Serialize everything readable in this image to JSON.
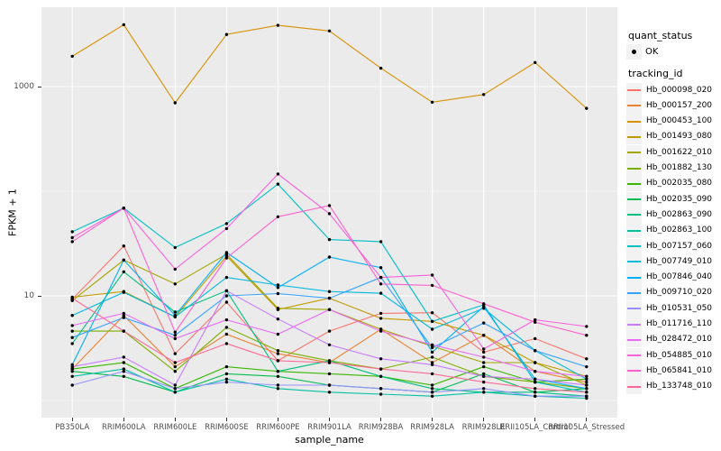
{
  "figure": {
    "background": "#FFFFFF",
    "panel_background": "#EBEBEB",
    "gridline_color": "#FFFFFF",
    "point_color": "#000000",
    "axis_text_color": "#4D4D4D"
  },
  "chart_data": {
    "type": "line",
    "title": "",
    "xlabel": "sample_name",
    "ylabel": "FPKM + 1",
    "y_scale": "log10",
    "ylim": [
      0.63,
      5750
    ],
    "grid": true,
    "y_major_ticks": [
      {
        "label": "1000",
        "value": 1000
      },
      {
        "label": "10",
        "value": 10
      }
    ],
    "y_minor_ticks": [
      100,
      1
    ],
    "legend_position": "right",
    "categories": [
      "PB350LA",
      "RRIM600LA",
      "RRIM600LE",
      "RRIM600SE",
      "RRIM600PE",
      "RRIM901LA",
      "RRIM928BA",
      "RRIM928LA",
      "RRIM928LE",
      "RRII105LA_Control",
      "RRII105LA_Stressed"
    ],
    "legend": {
      "quant_status_title": "quant_status",
      "quant_status_items": [
        {
          "label": "OK",
          "symbol": "point",
          "color": "#000000"
        }
      ],
      "tracking_title": "tracking_id"
    },
    "series": [
      {
        "name": "Hb_000098_020",
        "color": "#F8766D",
        "values": [
          9.3,
          30,
          2.8,
          8.7,
          2.4,
          4.6,
          6.8,
          6.9,
          2.9,
          3.9,
          2.5
        ]
      },
      {
        "name": "Hb_000157_200",
        "color": "#EA8331",
        "values": [
          2.0,
          6.5,
          2.1,
          4.3,
          2.8,
          2.3,
          4.8,
          2.3,
          4.2,
          1.9,
          1.5
        ]
      },
      {
        "name": "Hb_000453_100",
        "color": "#D89000",
        "values": [
          1950,
          3900,
          700,
          3150,
          3850,
          3400,
          1500,
          710,
          840,
          1700,
          620
        ]
      },
      {
        "name": "Hb_001493_080",
        "color": "#C09B00",
        "values": [
          9.7,
          11,
          6.3,
          24,
          7.4,
          9.5,
          6.1,
          5.7,
          4.2,
          2.3,
          1.7
        ]
      },
      {
        "name": "Hb_001622_010",
        "color": "#A3A500",
        "values": [
          9.0,
          22,
          13,
          25,
          7.6,
          7.4,
          4.8,
          3.3,
          2.3,
          2.3,
          1.4
        ]
      },
      {
        "name": "Hb_001882_130",
        "color": "#7CAE00",
        "values": [
          4.6,
          4.6,
          1.9,
          5.0,
          3.0,
          2.4,
          2.0,
          2.6,
          1.7,
          1.5,
          1.3
        ]
      },
      {
        "name": "Hb_002035_080",
        "color": "#39B600",
        "values": [
          2.0,
          2.3,
          1.3,
          2.1,
          1.9,
          1.8,
          1.7,
          1.4,
          2.1,
          1.5,
          1.6
        ]
      },
      {
        "name": "Hb_002035_090",
        "color": "#00BB4E",
        "values": [
          1.9,
          1.7,
          1.2,
          1.8,
          1.7,
          1.4,
          1.3,
          1.2,
          1.8,
          1.2,
          1.3
        ]
      },
      {
        "name": "Hb_002863_090",
        "color": "#00BF7D",
        "values": [
          3.5,
          17,
          7.0,
          11.2,
          1.9,
          2.4,
          1.7,
          1.3,
          1.2,
          1.2,
          1.1
        ]
      },
      {
        "name": "Hb_002863_100",
        "color": "#00C1A3",
        "values": [
          1.7,
          2.0,
          1.2,
          1.6,
          1.3,
          1.2,
          1.15,
          1.1,
          1.2,
          1.1,
          1.05
        ]
      },
      {
        "name": "Hb_007157_060",
        "color": "#00BFC4",
        "values": [
          41,
          69,
          29,
          49,
          117,
          34.5,
          33,
          5.7,
          8.2,
          1.5,
          1.2
        ]
      },
      {
        "name": "Hb_007749_010",
        "color": "#00BAE0",
        "values": [
          6.5,
          10.8,
          6.3,
          15,
          12.7,
          11,
          10.6,
          4.8,
          7.6,
          3.0,
          1.6
        ]
      },
      {
        "name": "Hb_007846_040",
        "color": "#00B0F6",
        "values": [
          2.2,
          22,
          6.5,
          26,
          12,
          23.5,
          18.6,
          2.9,
          7.9,
          1.6,
          1.3
        ]
      },
      {
        "name": "Hb_009710_020",
        "color": "#35A2FF",
        "values": [
          4.0,
          6.2,
          4.2,
          10,
          10.5,
          9.5,
          15,
          3.2,
          5.5,
          3.0,
          2.1
        ]
      },
      {
        "name": "Hb_010531_050",
        "color": "#9590FF",
        "values": [
          1.4,
          1.9,
          1.3,
          1.5,
          1.4,
          1.4,
          1.3,
          1.2,
          1.3,
          1.1,
          1.1
        ]
      },
      {
        "name": "Hb_011716_110",
        "color": "#C77CFF",
        "values": [
          2.1,
          2.6,
          1.4,
          11.2,
          6.0,
          3.4,
          2.5,
          2.2,
          1.7,
          1.6,
          1.4
        ]
      },
      {
        "name": "Hb_028472_010",
        "color": "#E76BF3",
        "values": [
          5.2,
          6.8,
          3.9,
          5.9,
          4.3,
          7.4,
          4.6,
          3.4,
          2.6,
          1.9,
          1.7
        ]
      },
      {
        "name": "Hb_054885_010",
        "color": "#FA62DB",
        "values": [
          36,
          69,
          18,
          44,
          146,
          61,
          15,
          15.8,
          3.1,
          5.9,
          5.1
        ]
      },
      {
        "name": "Hb_065841_010",
        "color": "#FF61CC",
        "values": [
          33,
          69,
          4.5,
          23,
          57,
          73,
          13,
          12.6,
          8.4,
          5.6,
          4.2
        ]
      },
      {
        "name": "Hb_133748_010",
        "color": "#FF6A98",
        "values": [
          9.5,
          4.6,
          2.3,
          3.5,
          2.4,
          2.3,
          2.0,
          1.8,
          1.5,
          1.3,
          1.2
        ]
      }
    ]
  }
}
